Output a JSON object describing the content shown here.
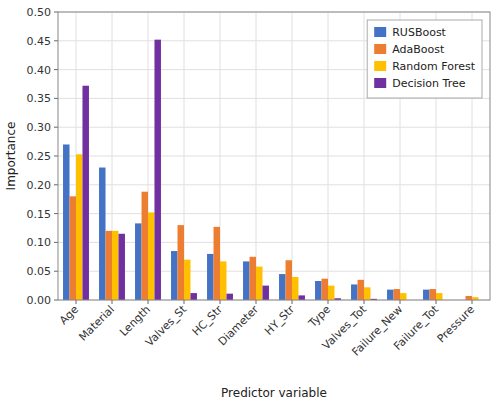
{
  "chart_data": {
    "type": "bar",
    "categories": [
      "Age",
      "Material",
      "Length",
      "Valves_St",
      "HC_Str",
      "Diameter",
      "HY_Str",
      "Type",
      "Valves_Tot",
      "Failure_New",
      "Failure_Tot",
      "Pressure"
    ],
    "series": [
      {
        "name": "RUSBoost",
        "color": "#4472C4",
        "values": [
          0.27,
          0.23,
          0.133,
          0.085,
          0.08,
          0.067,
          0.045,
          0.033,
          0.027,
          0.018,
          0.018,
          0.0
        ]
      },
      {
        "name": "AdaBoost",
        "color": "#ED7D31",
        "values": [
          0.18,
          0.12,
          0.188,
          0.13,
          0.127,
          0.075,
          0.069,
          0.037,
          0.035,
          0.019,
          0.019,
          0.007
        ]
      },
      {
        "name": "Random Forest",
        "color": "#FFC000",
        "values": [
          0.253,
          0.12,
          0.152,
          0.07,
          0.067,
          0.058,
          0.04,
          0.025,
          0.022,
          0.012,
          0.012,
          0.005
        ]
      },
      {
        "name": "Decision Tree",
        "color": "#7030A0",
        "values": [
          0.372,
          0.115,
          0.452,
          0.012,
          0.011,
          0.025,
          0.008,
          0.003,
          0.002,
          0.0,
          0.0,
          0.0
        ]
      }
    ],
    "xlabel": "Predictor variable",
    "ylabel": "Importance",
    "ylim": [
      0,
      0.5
    ],
    "yticks": [
      {
        "value": 0.0,
        "label": "0.00"
      },
      {
        "value": 0.05,
        "label": "0.05"
      },
      {
        "value": 0.1,
        "label": "0.10"
      },
      {
        "value": 0.15,
        "label": "0.15"
      },
      {
        "value": 0.2,
        "label": "0.20"
      },
      {
        "value": 0.25,
        "label": "0.25"
      },
      {
        "value": 0.3,
        "label": "0.30"
      },
      {
        "value": 0.35,
        "label": "0.35"
      },
      {
        "value": 0.4,
        "label": "0.40"
      },
      {
        "value": 0.45,
        "label": "0.45"
      },
      {
        "value": 0.5,
        "label": "0.50"
      }
    ],
    "grid": true,
    "legend": "upper right"
  }
}
